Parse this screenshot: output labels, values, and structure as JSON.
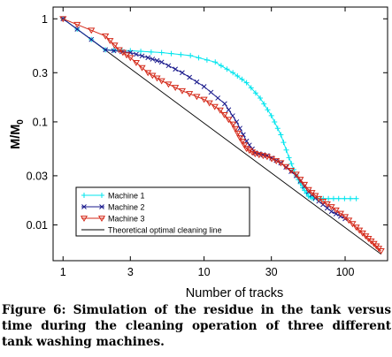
{
  "chart_data": {
    "type": "line",
    "xlabel": "Number of tracks",
    "ylabel": "M/M",
    "ylabel_sub": "0",
    "x_scale": "log",
    "y_scale": "log",
    "xlim": [
      0.85,
      200
    ],
    "ylim": [
      0.0045,
      1.3
    ],
    "x_ticks": [
      1,
      3,
      10,
      30,
      100
    ],
    "x_tick_labels": [
      "1",
      "3",
      "10",
      "30",
      "100"
    ],
    "y_ticks": [
      1,
      0.3,
      0.1,
      0.03,
      0.01
    ],
    "y_tick_labels": [
      "1",
      "0.3",
      "0.1",
      "0.03",
      "0.01"
    ],
    "grid": false,
    "legend_position": "lower-left",
    "series": [
      {
        "name": "Machine 1",
        "color": "#00e5ee",
        "marker": "plus",
        "points": [
          [
            1,
            1.0
          ],
          [
            2,
            0.5
          ],
          [
            3,
            0.49
          ],
          [
            5,
            0.47
          ],
          [
            8,
            0.44
          ],
          [
            12,
            0.38
          ],
          [
            16,
            0.3
          ],
          [
            20,
            0.24
          ],
          [
            25,
            0.17
          ],
          [
            30,
            0.115
          ],
          [
            35,
            0.075
          ],
          [
            40,
            0.045
          ],
          [
            45,
            0.03
          ],
          [
            50,
            0.023
          ],
          [
            55,
            0.019
          ],
          [
            60,
            0.018
          ],
          [
            70,
            0.018
          ],
          [
            90,
            0.018
          ],
          [
            120,
            0.018
          ]
        ]
      },
      {
        "name": "Machine 2",
        "color": "#1a1a8c",
        "marker": "x",
        "points": [
          [
            1,
            1.0
          ],
          [
            2,
            0.5
          ],
          [
            3,
            0.47
          ],
          [
            4,
            0.42
          ],
          [
            5,
            0.38
          ],
          [
            7,
            0.3
          ],
          [
            10,
            0.22
          ],
          [
            14,
            0.15
          ],
          [
            17,
            0.1
          ],
          [
            20,
            0.065
          ],
          [
            23,
            0.05
          ],
          [
            28,
            0.047
          ],
          [
            35,
            0.04
          ],
          [
            45,
            0.03
          ],
          [
            55,
            0.021
          ],
          [
            65,
            0.017
          ],
          [
            80,
            0.0135
          ],
          [
            100,
            0.0115
          ]
        ]
      },
      {
        "name": "Machine 3",
        "color": "#d42a1a",
        "marker": "triangle-down",
        "points": [
          [
            1,
            1.0
          ],
          [
            2,
            0.68
          ],
          [
            2.5,
            0.5
          ],
          [
            3,
            0.42
          ],
          [
            4,
            0.3
          ],
          [
            5,
            0.25
          ],
          [
            7,
            0.2
          ],
          [
            10,
            0.165
          ],
          [
            13,
            0.13
          ],
          [
            16,
            0.095
          ],
          [
            18,
            0.07
          ],
          [
            20,
            0.055
          ],
          [
            23,
            0.049
          ],
          [
            28,
            0.046
          ],
          [
            35,
            0.04
          ],
          [
            45,
            0.031
          ],
          [
            55,
            0.022
          ],
          [
            65,
            0.018
          ],
          [
            80,
            0.015
          ],
          [
            100,
            0.012
          ],
          [
            120,
            0.0095
          ],
          [
            140,
            0.0078
          ],
          [
            160,
            0.0066
          ],
          [
            180,
            0.0056
          ]
        ]
      },
      {
        "name": "Theoretical optimal cleaning line",
        "color": "#000000",
        "marker": "none",
        "points": [
          [
            1,
            1.0
          ],
          [
            180,
            0.0052
          ]
        ]
      }
    ]
  },
  "caption": "Figure 6: Simulation of the residue in the tank versus time during the cleaning operation of three different tank washing machines."
}
